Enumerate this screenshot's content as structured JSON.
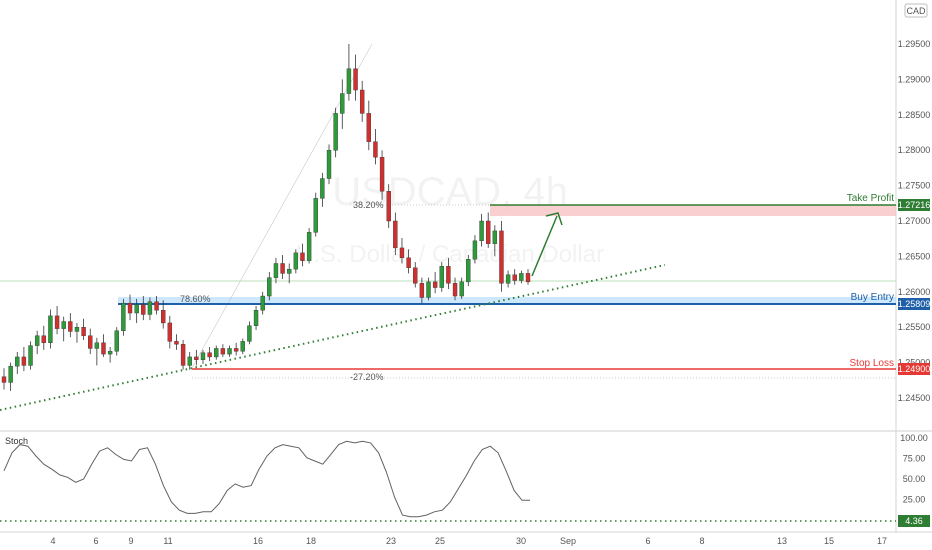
{
  "currency_badge": "CAD",
  "watermark": {
    "symbol": "USDCAD, 4h",
    "description": "U.S. Dollar / Canadian Dollar"
  },
  "levels": {
    "take_profit": {
      "label": "Take Profit",
      "price_label": "1.27216",
      "value": 1.27216,
      "color": "#2e7d32"
    },
    "buy_entry": {
      "label": "Buy Entry",
      "price_label": "1.25809",
      "value": 1.25809,
      "color": "#1e5fa8"
    },
    "stop_loss": {
      "label": "Stop Loss",
      "price_label": "1.24900",
      "value": 1.249,
      "color": "#e53935"
    }
  },
  "fib_labels": {
    "fib_38": "38.20%",
    "fib_78": "78.60%",
    "fib_neg27": "-27.20%"
  },
  "indicator": {
    "name": "Stoch",
    "level_label": "4.36",
    "level_value": 4.36
  },
  "chart_data": [
    {
      "type": "candlestick",
      "ylim": [
        1.2435,
        1.2985
      ],
      "y_ticks": [
        "1.29500",
        "1.29000",
        "1.28500",
        "1.28000",
        "1.27500",
        "1.27000",
        "1.26500",
        "1.26000",
        "1.25500",
        "1.25000",
        "1.24500"
      ],
      "y_tick_values": [
        1.295,
        1.29,
        1.285,
        1.28,
        1.275,
        1.27,
        1.265,
        1.26,
        1.255,
        1.25,
        1.245
      ],
      "x_ticks": [
        "4",
        "6",
        "9",
        "11",
        "16",
        "18",
        "23",
        "25",
        "30",
        "Sep",
        "6",
        "8",
        "13",
        "15",
        "17"
      ],
      "candles": [
        [
          1.248,
          1.2492,
          1.2462,
          1.2472
        ],
        [
          1.2472,
          1.25,
          1.246,
          1.2495
        ],
        [
          1.2495,
          1.2515,
          1.2484,
          1.2508
        ],
        [
          1.2508,
          1.2522,
          1.2488,
          1.2496
        ],
        [
          1.2496,
          1.253,
          1.249,
          1.2524
        ],
        [
          1.2524,
          1.2545,
          1.2512,
          1.2538
        ],
        [
          1.2538,
          1.2552,
          1.2518,
          1.2528
        ],
        [
          1.2528,
          1.2575,
          1.252,
          1.2566
        ],
        [
          1.2566,
          1.258,
          1.254,
          1.2548
        ],
        [
          1.2548,
          1.2565,
          1.253,
          1.2558
        ],
        [
          1.2558,
          1.257,
          1.2536,
          1.2544
        ],
        [
          1.2544,
          1.2556,
          1.2528,
          1.255
        ],
        [
          1.255,
          1.2562,
          1.2532,
          1.2538
        ],
        [
          1.2538,
          1.2548,
          1.2512,
          1.252
        ],
        [
          1.252,
          1.2535,
          1.2496,
          1.2528
        ],
        [
          1.2528,
          1.254,
          1.2508,
          1.2512
        ],
        [
          1.2512,
          1.2522,
          1.25,
          1.2516
        ],
        [
          1.2516,
          1.255,
          1.251,
          1.2545
        ],
        [
          1.2545,
          1.259,
          1.2538,
          1.2584
        ],
        [
          1.2584,
          1.2596,
          1.256,
          1.257
        ],
        [
          1.257,
          1.259,
          1.2556,
          1.2582
        ],
        [
          1.2582,
          1.2594,
          1.256,
          1.2568
        ],
        [
          1.2568,
          1.2592,
          1.256,
          1.2586
        ],
        [
          1.2586,
          1.2594,
          1.2568,
          1.2574
        ],
        [
          1.2574,
          1.2588,
          1.2548,
          1.2556
        ],
        [
          1.2556,
          1.2566,
          1.252,
          1.253
        ],
        [
          1.253,
          1.254,
          1.2518,
          1.2526
        ],
        [
          1.2526,
          1.2532,
          1.249,
          1.2496
        ],
        [
          1.2496,
          1.2515,
          1.249,
          1.2508
        ],
        [
          1.2508,
          1.2518,
          1.2496,
          1.2504
        ],
        [
          1.2504,
          1.2518,
          1.2498,
          1.2514
        ],
        [
          1.2514,
          1.2522,
          1.2502,
          1.2508
        ],
        [
          1.2508,
          1.2524,
          1.2504,
          1.252
        ],
        [
          1.252,
          1.2526,
          1.2508,
          1.2512
        ],
        [
          1.2512,
          1.2524,
          1.2508,
          1.252
        ],
        [
          1.252,
          1.2528,
          1.251,
          1.2516
        ],
        [
          1.2516,
          1.2534,
          1.2512,
          1.253
        ],
        [
          1.253,
          1.2558,
          1.2526,
          1.2552
        ],
        [
          1.2552,
          1.258,
          1.2546,
          1.2574
        ],
        [
          1.2574,
          1.26,
          1.2568,
          1.2594
        ],
        [
          1.2594,
          1.2628,
          1.2588,
          1.262
        ],
        [
          1.262,
          1.2648,
          1.2612,
          1.264
        ],
        [
          1.264,
          1.2652,
          1.2618,
          1.2626
        ],
        [
          1.2626,
          1.264,
          1.2612,
          1.2632
        ],
        [
          1.2632,
          1.266,
          1.2626,
          1.2655
        ],
        [
          1.2655,
          1.2668,
          1.2636,
          1.2644
        ],
        [
          1.2644,
          1.269,
          1.264,
          1.2684
        ],
        [
          1.2684,
          1.274,
          1.2678,
          1.2732
        ],
        [
          1.2732,
          1.2768,
          1.272,
          1.276
        ],
        [
          1.276,
          1.2808,
          1.2752,
          1.28
        ],
        [
          1.28,
          1.286,
          1.279,
          1.2852
        ],
        [
          1.2852,
          1.29,
          1.283,
          1.288
        ],
        [
          1.288,
          1.295,
          1.287,
          1.2915
        ],
        [
          1.2915,
          1.2935,
          1.287,
          1.2885
        ],
        [
          1.2885,
          1.2898,
          1.284,
          1.2852
        ],
        [
          1.2852,
          1.287,
          1.28,
          1.2812
        ],
        [
          1.2812,
          1.283,
          1.278,
          1.279
        ],
        [
          1.279,
          1.28,
          1.273,
          1.2742
        ],
        [
          1.2742,
          1.2752,
          1.269,
          1.27
        ],
        [
          1.27,
          1.2712,
          1.2652,
          1.2662
        ],
        [
          1.2662,
          1.2676,
          1.264,
          1.2648
        ],
        [
          1.2648,
          1.266,
          1.2626,
          1.2634
        ],
        [
          1.2634,
          1.2642,
          1.2606,
          1.2612
        ],
        [
          1.2612,
          1.262,
          1.2584,
          1.2592
        ],
        [
          1.2592,
          1.262,
          1.2588,
          1.2614
        ],
        [
          1.2614,
          1.2628,
          1.2598,
          1.2606
        ],
        [
          1.2606,
          1.2642,
          1.26,
          1.2636
        ],
        [
          1.2636,
          1.2648,
          1.2604,
          1.2612
        ],
        [
          1.2612,
          1.262,
          1.2588,
          1.2594
        ],
        [
          1.2594,
          1.262,
          1.259,
          1.2614
        ],
        [
          1.2614,
          1.2652,
          1.2608,
          1.2646
        ],
        [
          1.2646,
          1.268,
          1.264,
          1.2672
        ],
        [
          1.2672,
          1.271,
          1.2664,
          1.27
        ],
        [
          1.27,
          1.2712,
          1.2662,
          1.2668
        ],
        [
          1.2668,
          1.2694,
          1.265,
          1.2686
        ],
        [
          1.2686,
          1.27,
          1.26,
          1.2612
        ],
        [
          1.2612,
          1.263,
          1.2606,
          1.2624
        ],
        [
          1.2624,
          1.2632,
          1.261,
          1.2616
        ],
        [
          1.2616,
          1.263,
          1.2612,
          1.2626
        ],
        [
          1.2626,
          1.2632,
          1.261,
          1.2614
        ]
      ]
    },
    {
      "type": "line",
      "name": "Stoch",
      "ylim": [
        0,
        100
      ],
      "y_ticks": [
        "100.00",
        "75.00",
        "50.00",
        "25.00"
      ],
      "y_tick_values": [
        100,
        75,
        50,
        25
      ],
      "values": [
        60,
        82,
        92,
        90,
        78,
        68,
        62,
        55,
        52,
        46,
        50,
        68,
        84,
        88,
        80,
        74,
        72,
        86,
        88,
        68,
        42,
        22,
        12,
        8,
        8,
        10,
        10,
        20,
        36,
        44,
        40,
        42,
        62,
        78,
        88,
        92,
        90,
        88,
        76,
        72,
        68,
        80,
        92,
        96,
        94,
        96,
        94,
        82,
        58,
        28,
        6,
        4,
        4,
        6,
        10,
        12,
        22,
        38,
        54,
        72,
        86,
        90,
        82,
        60,
        36,
        24,
        24
      ]
    }
  ]
}
